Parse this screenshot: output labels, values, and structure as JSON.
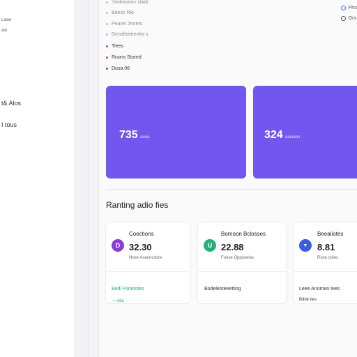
{
  "sidebar": {
    "items": [
      {
        "label": "Lowe"
      },
      {
        "label": "ast"
      },
      {
        "label": "t& Alos"
      },
      {
        "label": "I tous"
      }
    ]
  },
  "nav": {
    "items": [
      {
        "label": "Yimhnonrcr cbidr",
        "state": "muted"
      },
      {
        "label": "Boesc Rio",
        "state": "muted"
      },
      {
        "label": "Pearet Jrnrets",
        "state": "muted"
      },
      {
        "label": "Denddsiteerrks s",
        "state": "muted"
      },
      {
        "label": "Tiees",
        "state": "active",
        "dot": "blue"
      },
      {
        "label": "Ruons Stored",
        "state": "active",
        "dot": "pink"
      },
      {
        "label": "Dusa 06",
        "state": "active",
        "dot": "purple"
      }
    ]
  },
  "top_right": {
    "items": [
      {
        "label": "Prts"
      },
      {
        "label": "Ors"
      }
    ]
  },
  "summary_cards": [
    {
      "value": "735",
      "unit": "aeoa",
      "color": "#7257ee"
    },
    {
      "value": "324",
      "unit": "aeoiaen",
      "color": "#7257ee"
    }
  ],
  "section": {
    "title": "Ranting adio fies"
  },
  "mini_cards": [
    {
      "name": "Coections",
      "avatar_letter": "D",
      "avatar_color": "#8a3fd4",
      "value": "32.30",
      "sub": "Nnse Aseoncitore",
      "foot1": "Bedl Fsraltotes",
      "foot2": "—-obo"
    },
    {
      "name": "Bomoon Bclosses",
      "avatar_letter": "U",
      "avatar_color": "#25b07a",
      "value": "22.88",
      "sub": "Fonse Opposeles",
      "foot1": "Bodeleoteeetting",
      "foot2": ""
    },
    {
      "name": "Beealiotes",
      "avatar_letter": "▼",
      "avatar_color": "#3c5ce0",
      "value": "8.81",
      "sub": "Rose ooies",
      "foot1": "Leee Anomeo tees",
      "foot2": "Bdde ties"
    }
  ]
}
